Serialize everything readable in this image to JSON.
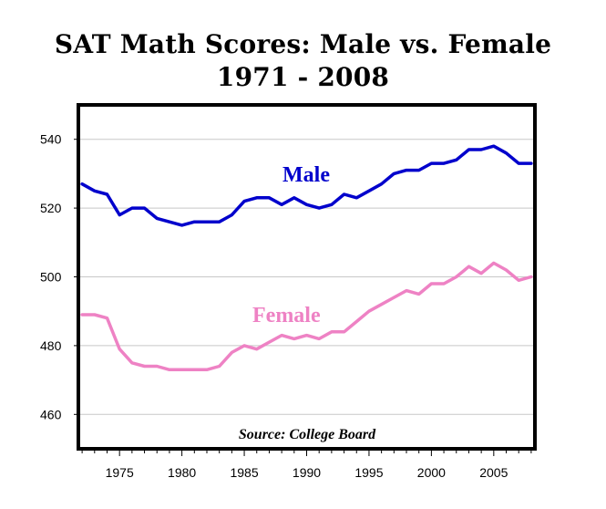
{
  "chart_data": {
    "type": "line",
    "title": "SAT Math Scores: Male vs. Female",
    "subtitle": "1971 - 2008",
    "xlabel": "",
    "ylabel": "",
    "xlim": [
      1971.7,
      2008.3
    ],
    "ylim": [
      450,
      550
    ],
    "yticks": [
      460,
      480,
      500,
      520,
      540
    ],
    "xticks": [
      1975,
      1980,
      1985,
      1990,
      1995,
      2000,
      2005
    ],
    "grid": true,
    "source": "Source: College Board",
    "x": [
      1972,
      1973,
      1974,
      1975,
      1976,
      1977,
      1978,
      1979,
      1980,
      1981,
      1982,
      1983,
      1984,
      1985,
      1986,
      1987,
      1988,
      1989,
      1990,
      1991,
      1992,
      1993,
      1994,
      1995,
      1996,
      1997,
      1998,
      1999,
      2000,
      2001,
      2002,
      2003,
      2004,
      2005,
      2006,
      2007,
      2008
    ],
    "series": [
      {
        "name": "Male",
        "color": "#0000cc",
        "values": [
          527,
          525,
          524,
          518,
          520,
          520,
          517,
          516,
          515,
          516,
          516,
          516,
          518,
          522,
          523,
          523,
          521,
          523,
          521,
          520,
          521,
          524,
          523,
          525,
          527,
          530,
          531,
          531,
          533,
          533,
          534,
          537,
          537,
          538,
          536,
          533,
          533
        ]
      },
      {
        "name": "Female",
        "color": "#ee82c4",
        "values": [
          489,
          489,
          488,
          479,
          475,
          474,
          474,
          473,
          473,
          473,
          473,
          474,
          478,
          480,
          479,
          481,
          483,
          482,
          483,
          482,
          484,
          484,
          487,
          490,
          492,
          494,
          496,
          495,
          498,
          498,
          500,
          503,
          501,
          504,
          502,
          499,
          500
        ]
      }
    ]
  }
}
